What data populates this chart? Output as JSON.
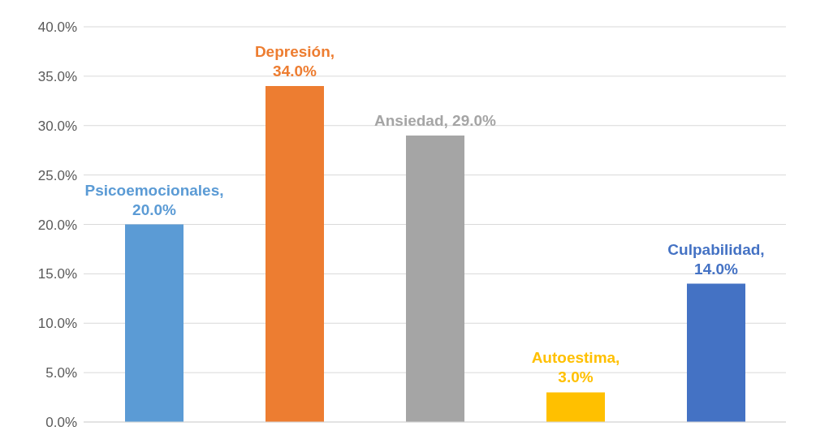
{
  "chart_data": {
    "type": "bar",
    "categories": [
      null,
      null,
      null,
      null,
      null
    ],
    "values": [
      20.0,
      34.0,
      29.0,
      3.0,
      14.0
    ],
    "value_labels": [
      "Psicoemocionales, 20.0%",
      "Depresión, 34.0%",
      "Ansiedad, 29.0%",
      "Autoestima, 3.0%",
      "Culpabilidad, 14.0%"
    ],
    "colors": [
      "#5b9bd5",
      "#ed7d31",
      "#a5a5a5",
      "#ffc000",
      "#4472c4"
    ],
    "ylim": [
      0,
      40
    ],
    "yticks": [
      {
        "value": 0,
        "label": "0.0%"
      },
      {
        "value": 5,
        "label": "5.0%"
      },
      {
        "value": 10,
        "label": "10.0%"
      },
      {
        "value": 15,
        "label": "15.0%"
      },
      {
        "value": 20,
        "label": "20.0%"
      },
      {
        "value": 25,
        "label": "25.0%"
      },
      {
        "value": 30,
        "label": "30.0%"
      },
      {
        "value": 35,
        "label": "35.0%"
      },
      {
        "value": 40,
        "label": "40.0%"
      }
    ],
    "grid": "y",
    "tick_labels": "y"
  }
}
